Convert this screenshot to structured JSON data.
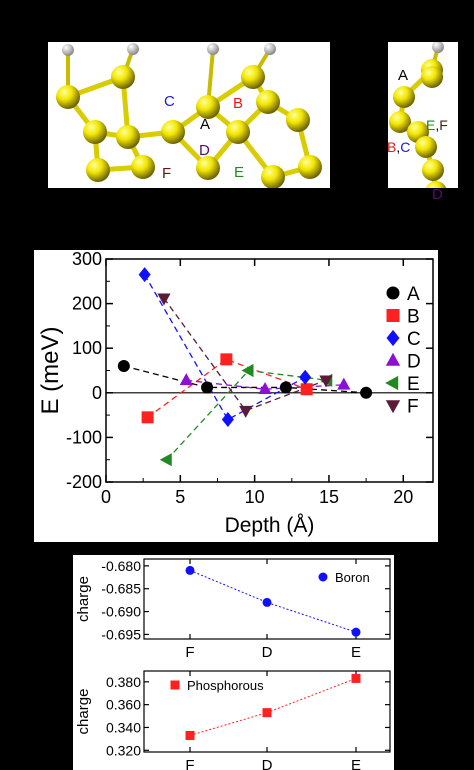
{
  "figure": {
    "top_panel": {
      "site_labels": {
        "A": "A",
        "B": "B",
        "C": "C",
        "D": "D",
        "E": "E",
        "F": "F",
        "BC": "B,C",
        "EF": "E,F"
      },
      "colors": {
        "A": "#000000",
        "B": "#e01a1a",
        "C": "#1a1ad6",
        "D": "#5a0a6e",
        "E": "#1f8a1f",
        "F": "#5a1a1a"
      }
    }
  },
  "chart_data": [
    {
      "type": "scatter",
      "xlabel": "Depth (Å)",
      "ylabel": "E (meV)",
      "xlim": [
        0,
        22
      ],
      "ylim": [
        -200,
        300
      ],
      "x_ticks": [
        "0",
        "5",
        "10",
        "15",
        "20"
      ],
      "y_ticks": [
        "300",
        "200",
        "100",
        "0",
        "-100",
        "-200"
      ],
      "zero_line": true,
      "legend_position": "right",
      "series": [
        {
          "name": "A",
          "color": "#000000",
          "marker": "circle",
          "points": [
            [
              1.2,
              60
            ],
            [
              6.8,
              12
            ],
            [
              12.1,
              12
            ],
            [
              17.5,
              0
            ]
          ]
        },
        {
          "name": "B",
          "color": "#ff2020",
          "marker": "square",
          "points": [
            [
              2.8,
              -55
            ],
            [
              8.1,
              75
            ],
            [
              13.5,
              8
            ]
          ]
        },
        {
          "name": "C",
          "color": "#1010ff",
          "marker": "diamond",
          "points": [
            [
              2.6,
              265
            ],
            [
              8.2,
              -60
            ],
            [
              13.4,
              35
            ]
          ]
        },
        {
          "name": "D",
          "color": "#8a10d8",
          "marker": "triangle-up",
          "points": [
            [
              5.4,
              28
            ],
            [
              10.7,
              8
            ],
            [
              16.0,
              18
            ]
          ]
        },
        {
          "name": "E",
          "color": "#208a20",
          "marker": "triangle-left",
          "points": [
            [
              4.1,
              -150
            ],
            [
              9.6,
              50
            ],
            [
              14.9,
              28
            ]
          ]
        },
        {
          "name": "F",
          "color": "#5a1a3a",
          "marker": "triangle-down",
          "points": [
            [
              3.9,
              212
            ],
            [
              9.4,
              -40
            ],
            [
              14.8,
              28
            ]
          ]
        }
      ]
    },
    {
      "type": "line",
      "ylabel": "charge",
      "categories": [
        "F",
        "D",
        "E"
      ],
      "y_ticks": [
        "-0.680",
        "-0.685",
        "-0.690",
        "-0.695"
      ],
      "ylim": [
        -0.696,
        -0.6785
      ],
      "series": [
        {
          "name": "Boron",
          "color": "#1010ff",
          "marker": "circle",
          "values": [
            -0.681,
            -0.688,
            -0.6945
          ]
        }
      ]
    },
    {
      "type": "line",
      "ylabel": "charge",
      "categories": [
        "F",
        "D",
        "E"
      ],
      "y_ticks": [
        "0.380",
        "0.360",
        "0.340",
        "0.320"
      ],
      "ylim": [
        0.3185,
        0.3895
      ],
      "series": [
        {
          "name": "Phosphorous",
          "color": "#ff2020",
          "marker": "square",
          "values": [
            0.333,
            0.353,
            0.383
          ]
        }
      ]
    }
  ]
}
